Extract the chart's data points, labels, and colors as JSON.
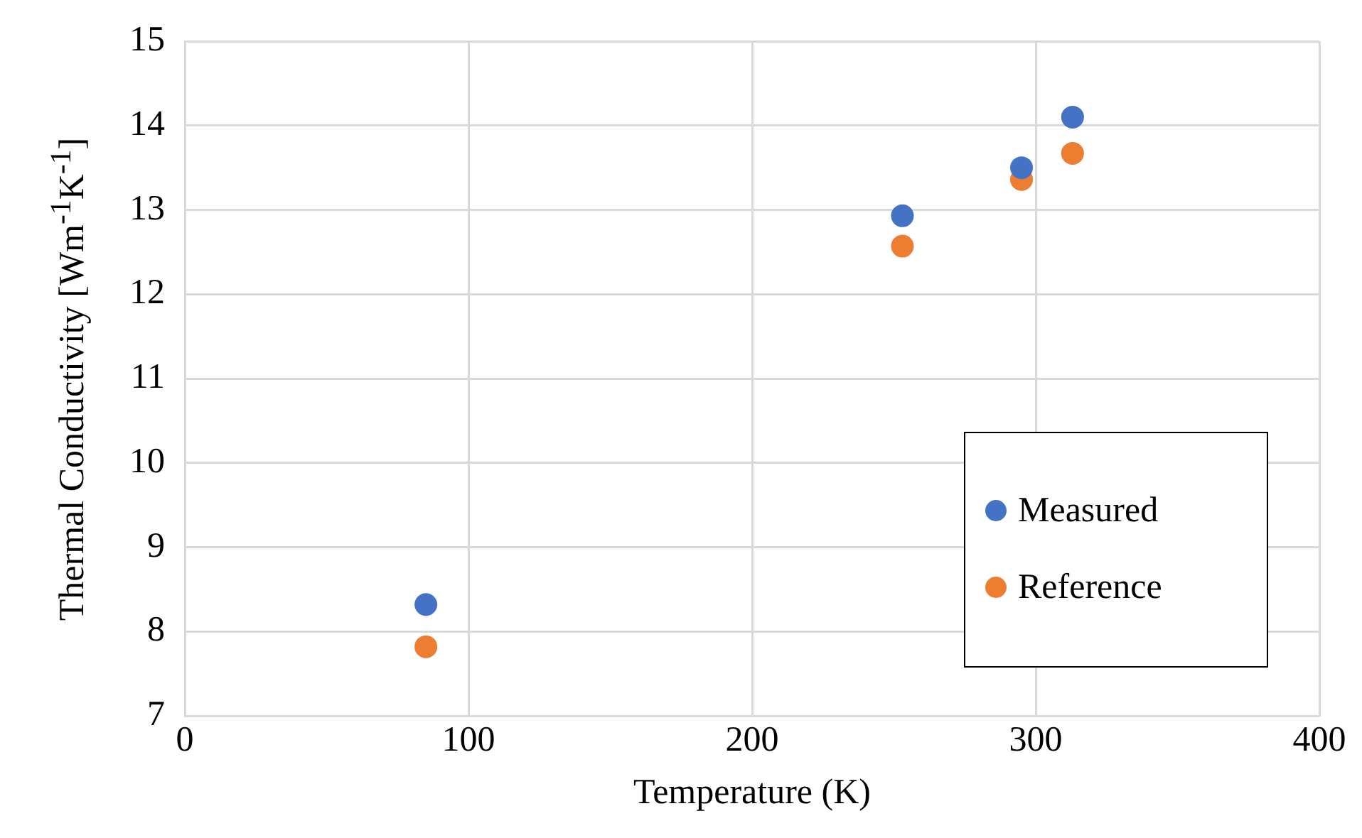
{
  "chart_data": {
    "type": "scatter",
    "xlabel": "Temperature (K)",
    "ylabel": "Thermal Conductivity [Wm$^{-1}$K$^{-1}$]",
    "x": [
      85,
      253,
      295,
      313
    ],
    "series": [
      {
        "name": "Measured",
        "color": "#4472c4",
        "values": [
          8.32,
          12.93,
          13.5,
          14.1
        ]
      },
      {
        "name": "Reference",
        "color": "#ed7d31",
        "values": [
          7.82,
          12.57,
          13.36,
          13.67
        ]
      }
    ],
    "xlim": [
      0,
      400
    ],
    "xticks": [
      0,
      100,
      200,
      300,
      400
    ],
    "ylim": [
      7,
      15
    ],
    "yticks": [
      7,
      8,
      9,
      10,
      11,
      12,
      13,
      14,
      15
    ],
    "grid": true,
    "legend": "right",
    "marker": "circle"
  }
}
